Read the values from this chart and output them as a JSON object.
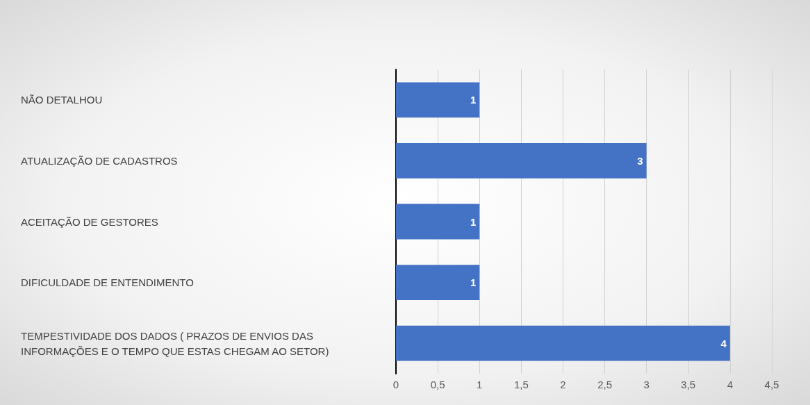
{
  "chart_data": {
    "type": "bar",
    "orientation": "horizontal",
    "categories": [
      "NÃO DETALHOU",
      "ATUALIZAÇÃO DE CADASTROS",
      "ACEITAÇÃO DE GESTORES",
      "DIFICULDADE DE ENTENDIMENTO",
      "TEMPESTIVIDADE DOS DADOS ( PRAZOS DE ENVIOS DAS INFORMAÇÕES E O TEMPO QUE ESTAS CHEGAM AO SETOR)"
    ],
    "values": [
      1,
      3,
      1,
      1,
      4
    ],
    "color": "#4472c4",
    "xlim": [
      0,
      4.5
    ],
    "xticks": [
      0,
      {
        "value": 0.5,
        "label": "0,5"
      },
      1,
      {
        "value": 1.5,
        "label": "1,5"
      },
      2,
      {
        "value": 2.5,
        "label": "2,5"
      },
      3,
      {
        "value": 3.5,
        "label": "3,5"
      },
      4,
      {
        "value": 4.5,
        "label": "4,5"
      }
    ],
    "grid": "x",
    "data_labels": true
  }
}
